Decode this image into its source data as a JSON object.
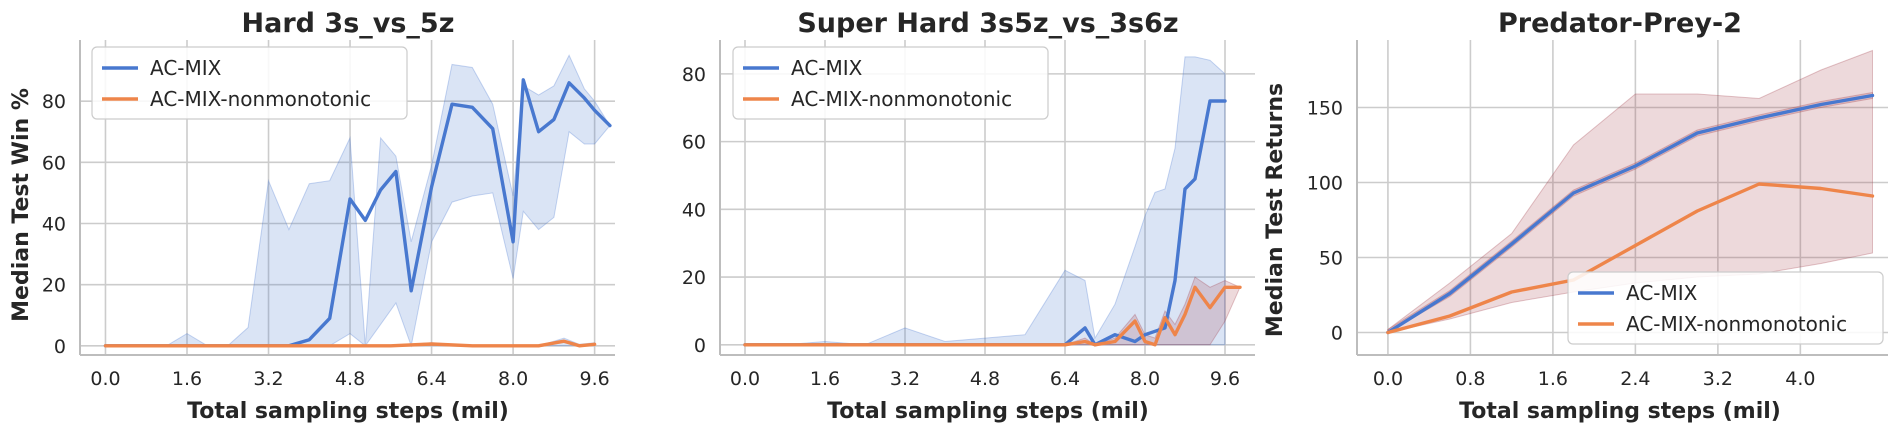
{
  "colors": {
    "ac_mix": "#4878cf",
    "nonmonotonic": "#ee854a",
    "band_blue": "#4878cf",
    "band_red": "#a33f4d",
    "grid": "#cccccc"
  },
  "chart_data": [
    {
      "type": "line",
      "title": "Hard 3s_vs_5z",
      "xlabel": "Total sampling steps (mil)",
      "ylabel": "Median Test Win %",
      "xlim": [
        -0.5,
        10.0
      ],
      "ylim": [
        -3,
        100
      ],
      "xticks": [
        0.0,
        1.6,
        3.2,
        4.8,
        6.4,
        8.0,
        9.6
      ],
      "xtick_labels": [
        "0.0",
        "1.6",
        "3.2",
        "4.8",
        "6.4",
        "8.0",
        "9.6"
      ],
      "yticks": [
        0,
        20,
        40,
        60,
        80
      ],
      "ytick_labels": [
        "0",
        "20",
        "40",
        "60",
        "80"
      ],
      "grid": true,
      "legend": "top-left",
      "series": [
        {
          "name": "AC-MIX",
          "color": "#4878cf",
          "x": [
            0.0,
            0.4,
            0.8,
            1.2,
            1.6,
            2.0,
            2.4,
            2.8,
            3.2,
            3.6,
            4.0,
            4.4,
            4.8,
            5.1,
            5.4,
            5.7,
            6.0,
            6.4,
            6.8,
            7.2,
            7.6,
            8.0,
            8.2,
            8.5,
            8.8,
            9.1,
            9.4,
            9.6,
            9.9
          ],
          "y": [
            0,
            0,
            0,
            0,
            0,
            0,
            0,
            0,
            0,
            0,
            2,
            9,
            48,
            41,
            51,
            57,
            18,
            52,
            79,
            78,
            71,
            34,
            87,
            70,
            74,
            86,
            81,
            77,
            72
          ],
          "band_low": [
            0,
            0,
            0,
            0,
            0,
            0,
            0,
            0,
            0,
            0,
            0,
            0,
            4,
            0,
            7,
            14,
            0,
            34,
            47,
            49,
            50,
            22,
            44,
            38,
            42,
            70,
            66,
            66,
            72
          ],
          "band_high": [
            0,
            0,
            0,
            0,
            4,
            0,
            0,
            6,
            54,
            38,
            53,
            54,
            68,
            0,
            68,
            62,
            34,
            59,
            92,
            91,
            79,
            49,
            85,
            82,
            85,
            95,
            84,
            80,
            72
          ]
        },
        {
          "name": "AC-MIX-nonmonotonic",
          "color": "#ee854a",
          "x": [
            0.0,
            0.8,
            1.6,
            2.4,
            3.2,
            4.0,
            4.8,
            5.6,
            6.4,
            7.2,
            8.0,
            8.5,
            9.0,
            9.3,
            9.6
          ],
          "y": [
            0,
            0,
            0,
            0,
            0,
            0,
            0,
            0,
            0.6,
            0,
            0,
            0,
            1.5,
            0,
            0.5
          ],
          "band_low": [
            0,
            0,
            0,
            0,
            0,
            0,
            0,
            0,
            0,
            0,
            0,
            0,
            0,
            0,
            0
          ],
          "band_high": [
            0,
            0,
            0,
            0,
            0,
            0,
            0,
            0,
            1,
            0,
            0,
            0,
            2.5,
            0.5,
            1
          ]
        }
      ]
    },
    {
      "type": "line",
      "title": "Super Hard 3s5z_vs_3s6z",
      "xlabel": "Total sampling steps (mil)",
      "ylabel": "",
      "xlim": [
        -0.5,
        10.2
      ],
      "ylim": [
        -3,
        90
      ],
      "xticks": [
        0.0,
        1.6,
        3.2,
        4.8,
        6.4,
        8.0,
        9.6
      ],
      "xtick_labels": [
        "0.0",
        "1.6",
        "3.2",
        "4.8",
        "6.4",
        "8.0",
        "9.6"
      ],
      "yticks": [
        0,
        20,
        40,
        60,
        80
      ],
      "ytick_labels": [
        "0",
        "20",
        "40",
        "60",
        "80"
      ],
      "grid": true,
      "legend": "top-left",
      "series": [
        {
          "name": "AC-MIX",
          "color": "#4878cf",
          "x": [
            0.0,
            0.8,
            1.6,
            2.4,
            3.2,
            4.0,
            4.8,
            5.6,
            6.4,
            6.8,
            7.0,
            7.4,
            7.8,
            8.0,
            8.2,
            8.4,
            8.6,
            8.8,
            9.0,
            9.3,
            9.6
          ],
          "y": [
            0,
            0,
            0,
            0,
            0,
            0,
            0,
            0,
            0,
            5,
            0,
            3,
            1,
            3,
            4,
            5,
            19,
            46,
            49,
            72,
            72
          ],
          "band_low": [
            0,
            0,
            0,
            0,
            0,
            0,
            0,
            0,
            0,
            0,
            0,
            0,
            0,
            0,
            0,
            0,
            0,
            0,
            0,
            0,
            0
          ],
          "band_high": [
            0,
            0,
            1,
            0,
            5,
            1,
            2,
            3,
            22,
            19,
            2,
            12,
            29,
            38,
            45,
            46,
            58,
            85,
            85,
            84,
            80
          ]
        },
        {
          "name": "AC-MIX-nonmonotonic",
          "color": "#ee854a",
          "x": [
            0.0,
            0.8,
            1.6,
            2.4,
            3.2,
            4.0,
            4.8,
            5.6,
            6.4,
            6.8,
            7.0,
            7.4,
            7.8,
            8.0,
            8.2,
            8.4,
            8.6,
            8.8,
            9.0,
            9.3,
            9.6,
            9.9
          ],
          "y": [
            0,
            0,
            0,
            0,
            0,
            0,
            0,
            0,
            0,
            1,
            0,
            1,
            7,
            1,
            0,
            8,
            3,
            9,
            17,
            11,
            17,
            17
          ],
          "band_low": [
            0,
            0,
            0,
            0,
            0,
            0,
            0,
            0,
            0,
            0,
            0,
            0,
            0,
            0,
            0,
            0,
            0,
            0,
            0,
            0,
            7,
            17
          ],
          "band_high": [
            0,
            0,
            0,
            0,
            0,
            0,
            0,
            0,
            0,
            2,
            0,
            2,
            9,
            3,
            2,
            10,
            6,
            12,
            20,
            17,
            19,
            17
          ]
        }
      ]
    },
    {
      "type": "line",
      "title": "Predator-Prey-2",
      "xlabel": "Total sampling steps (mil)",
      "ylabel": "Median Test Returns",
      "xlim": [
        -0.3,
        4.85
      ],
      "ylim": [
        -15,
        195
      ],
      "xticks": [
        0.0,
        0.8,
        1.6,
        2.4,
        3.2,
        4.0
      ],
      "xtick_labels": [
        "0.0",
        "0.8",
        "1.6",
        "2.4",
        "3.2",
        "4.0"
      ],
      "yticks": [
        0,
        50,
        100,
        150
      ],
      "ytick_labels": [
        "0",
        "50",
        "100",
        "150"
      ],
      "grid": true,
      "legend": "lower-right",
      "series": [
        {
          "name": "AC-MIX",
          "color": "#4878cf",
          "x": [
            0.0,
            0.6,
            1.2,
            1.8,
            2.4,
            3.0,
            3.6,
            4.2,
            4.7
          ],
          "y": [
            0,
            26,
            59,
            93,
            111,
            133,
            143,
            152,
            158
          ],
          "band_low": [
            0,
            24,
            57,
            91,
            109,
            131,
            141,
            150,
            156
          ],
          "band_high": [
            2,
            28,
            61,
            95,
            113,
            135,
            145,
            154,
            160
          ]
        },
        {
          "name": "AC-MIX-nonmonotonic",
          "color": "#ee854a",
          "x": [
            0.0,
            0.6,
            1.2,
            1.8,
            2.4,
            3.0,
            3.6,
            4.2,
            4.7
          ],
          "y": [
            0,
            11,
            27,
            35,
            58,
            81,
            99,
            96,
            91
          ],
          "band_low": [
            0,
            9,
            20,
            27,
            33,
            37,
            39,
            46,
            53
          ],
          "band_high": [
            2,
            33,
            66,
            125,
            159,
            159,
            156,
            175,
            188
          ]
        }
      ]
    }
  ]
}
